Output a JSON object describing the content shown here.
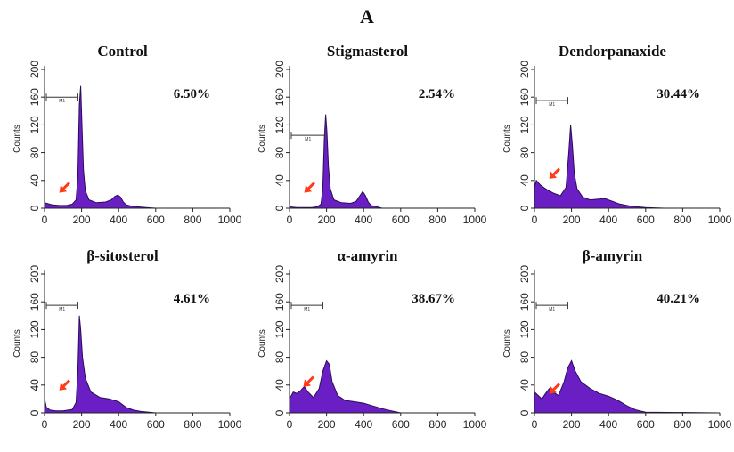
{
  "figure_label": "A",
  "colors": {
    "histogram": "#6a1fc4",
    "outline": "#2a0d55",
    "arrow": "#ff3b1a",
    "axis": "#222222"
  },
  "chart_data": [
    {
      "type": "area",
      "title": "Control",
      "ylabel": "Counts",
      "xlim": [
        0,
        1000
      ],
      "ylim": [
        0,
        200
      ],
      "x_ticks": [
        0,
        200,
        400,
        600,
        800,
        1000
      ],
      "y_ticks": [
        0,
        40,
        80,
        120,
        160,
        200
      ],
      "annotation": "6.50%",
      "gate": {
        "x": [
          0,
          180
        ],
        "y": 160,
        "label": "M1"
      },
      "arrow_at": [
        90,
        25
      ],
      "x": [
        0,
        40,
        80,
        120,
        150,
        170,
        180,
        188,
        195,
        202,
        210,
        220,
        240,
        280,
        330,
        360,
        380,
        395,
        410,
        425,
        440,
        470,
        500,
        550,
        600,
        1000
      ],
      "y": [
        8,
        5,
        4,
        4,
        6,
        12,
        45,
        150,
        176,
        120,
        55,
        25,
        12,
        8,
        9,
        12,
        17,
        19,
        16,
        9,
        5,
        3,
        2,
        1,
        0,
        0
      ]
    },
    {
      "type": "area",
      "title": "Stigmasterol",
      "ylabel": "Counts",
      "xlim": [
        0,
        1000
      ],
      "ylim": [
        0,
        200
      ],
      "x_ticks": [
        0,
        200,
        400,
        600,
        800,
        1000
      ],
      "y_ticks": [
        0,
        40,
        80,
        120,
        160,
        200
      ],
      "annotation": "2.54%",
      "gate": {
        "x": [
          0,
          190
        ],
        "y": 105,
        "label": "M1"
      },
      "arrow_at": [
        90,
        25
      ],
      "x": [
        0,
        40,
        80,
        120,
        150,
        170,
        180,
        188,
        195,
        202,
        210,
        220,
        240,
        280,
        330,
        360,
        380,
        395,
        410,
        425,
        440,
        470,
        500,
        1000
      ],
      "y": [
        2,
        1,
        1,
        1,
        2,
        6,
        30,
        100,
        135,
        110,
        60,
        28,
        12,
        8,
        7,
        10,
        18,
        24,
        18,
        9,
        4,
        2,
        0,
        0
      ]
    },
    {
      "type": "area",
      "title": "Dendorpanaxide",
      "ylabel": "Counts",
      "xlim": [
        0,
        1000
      ],
      "ylim": [
        0,
        200
      ],
      "x_ticks": [
        0,
        200,
        400,
        600,
        800,
        1000
      ],
      "y_ticks": [
        0,
        40,
        80,
        120,
        160,
        200
      ],
      "annotation": "30.44%",
      "gate": {
        "x": [
          0,
          180
        ],
        "y": 155,
        "label": "M1"
      },
      "arrow_at": [
        90,
        45
      ],
      "x": [
        0,
        10,
        30,
        60,
        100,
        140,
        170,
        185,
        195,
        205,
        215,
        230,
        260,
        300,
        340,
        380,
        420,
        460,
        520,
        600,
        700,
        1000
      ],
      "y": [
        30,
        40,
        34,
        28,
        22,
        18,
        30,
        80,
        120,
        90,
        50,
        28,
        16,
        12,
        13,
        14,
        10,
        6,
        3,
        1,
        0,
        0
      ]
    },
    {
      "type": "area",
      "title": "β-sitosterol",
      "ylabel": "Counts",
      "xlim": [
        0,
        1000
      ],
      "ylim": [
        0,
        200
      ],
      "x_ticks": [
        0,
        200,
        400,
        600,
        800,
        1000
      ],
      "y_ticks": [
        0,
        40,
        80,
        120,
        160,
        200
      ],
      "annotation": "4.61%",
      "gate": {
        "x": [
          0,
          180
        ],
        "y": 155,
        "label": "M1"
      },
      "arrow_at": [
        90,
        35
      ],
      "x": [
        0,
        10,
        30,
        60,
        100,
        150,
        170,
        180,
        188,
        195,
        205,
        220,
        250,
        300,
        350,
        400,
        440,
        480,
        520,
        600,
        1000
      ],
      "y": [
        20,
        8,
        4,
        3,
        3,
        5,
        15,
        60,
        140,
        120,
        80,
        50,
        30,
        22,
        20,
        16,
        8,
        4,
        2,
        0,
        0
      ]
    },
    {
      "type": "area",
      "title": "α-amyrin",
      "ylabel": "Counts",
      "xlim": [
        0,
        1000
      ],
      "ylim": [
        0,
        200
      ],
      "x_ticks": [
        0,
        200,
        400,
        600,
        800,
        1000
      ],
      "y_ticks": [
        0,
        40,
        80,
        120,
        160,
        200
      ],
      "annotation": "38.67%",
      "gate": {
        "x": [
          0,
          180
        ],
        "y": 155,
        "label": "M1"
      },
      "arrow_at": [
        85,
        40
      ],
      "x": [
        0,
        20,
        40,
        60,
        80,
        100,
        130,
        160,
        180,
        200,
        215,
        230,
        260,
        300,
        350,
        400,
        450,
        500,
        550,
        600,
        1000
      ],
      "y": [
        20,
        30,
        28,
        32,
        38,
        30,
        22,
        35,
        60,
        75,
        70,
        45,
        25,
        18,
        16,
        14,
        10,
        6,
        3,
        0,
        0
      ]
    },
    {
      "type": "area",
      "title": "β-amyrin",
      "ylabel": "Counts",
      "xlim": [
        0,
        1000
      ],
      "ylim": [
        0,
        200
      ],
      "x_ticks": [
        0,
        200,
        400,
        600,
        800,
        1000
      ],
      "y_ticks": [
        0,
        40,
        80,
        120,
        160,
        200
      ],
      "annotation": "40.21%",
      "gate": {
        "x": [
          0,
          180
        ],
        "y": 155,
        "label": "M1"
      },
      "arrow_at": [
        90,
        30
      ],
      "x": [
        0,
        20,
        40,
        60,
        80,
        100,
        130,
        160,
        180,
        200,
        220,
        250,
        300,
        350,
        400,
        450,
        500,
        550,
        600,
        1000
      ],
      "y": [
        30,
        25,
        20,
        28,
        35,
        30,
        25,
        45,
        65,
        75,
        60,
        45,
        35,
        28,
        24,
        18,
        10,
        4,
        1,
        0
      ]
    }
  ]
}
